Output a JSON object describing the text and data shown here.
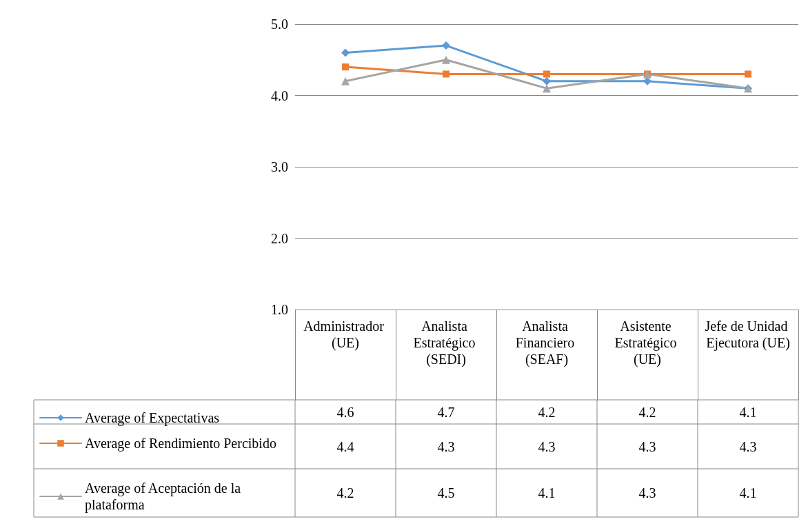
{
  "chart_data": {
    "type": "line",
    "categories": [
      "Administrador (UE)",
      "Analista Estratégico (SEDI)",
      "Analista Financiero (SEAF)",
      "Asistente Estratégico (UE)",
      "Jefe de Unidad Ejecutora (UE)"
    ],
    "series": [
      {
        "name": "Average of Expectativas",
        "color": "#5b9bd5",
        "marker": "diamond",
        "values": [
          4.6,
          4.7,
          4.2,
          4.2,
          4.1
        ]
      },
      {
        "name": "Average of Rendimiento Percibido",
        "color": "#ed7d31",
        "marker": "square",
        "values": [
          4.4,
          4.3,
          4.3,
          4.3,
          4.3
        ]
      },
      {
        "name": "Average of Aceptación de la plataforma",
        "color": "#a5a5a5",
        "marker": "triangle",
        "values": [
          4.2,
          4.5,
          4.1,
          4.3,
          4.1
        ]
      }
    ],
    "ylim": [
      1,
      5
    ],
    "yticks": [
      {
        "value": 1,
        "label": "1.0"
      },
      {
        "value": 2,
        "label": "2.0"
      },
      {
        "value": 3,
        "label": "3.0"
      },
      {
        "value": 4,
        "label": "4.0"
      },
      {
        "value": 5,
        "label": "5.0"
      }
    ],
    "grid": "y",
    "legend": "bottom",
    "data_labels": true,
    "line_style": "solid"
  }
}
